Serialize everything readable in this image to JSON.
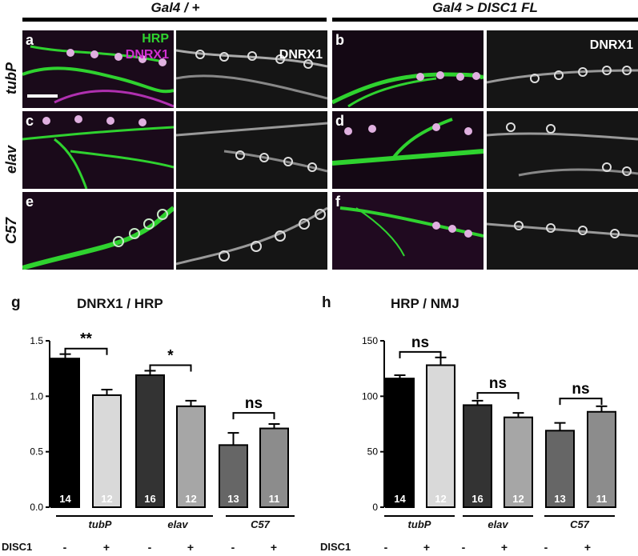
{
  "header": {
    "left_label": "Gal4 / +",
    "right_label": "Gal4 > DISC1 FL"
  },
  "rows": [
    "tubP",
    "elav",
    "C57"
  ],
  "panels": {
    "a": "a",
    "b": "b",
    "c": "c",
    "d": "d",
    "e": "e",
    "f": "f"
  },
  "channels": {
    "hrp": "HRP",
    "dnrx1": "DNRX1",
    "dnrx1_gray": "DNRX1",
    "dnrx1_gray_b": "DNRX1"
  },
  "colors": {
    "hrp": "#2fd22f",
    "dnrx1": "#d02fd0",
    "bar_dark": "#000000",
    "bar_light": "#d9d9d9"
  },
  "chart_data": [
    {
      "type": "bar",
      "letter": "g",
      "title": "DNRX1 / HRP",
      "categories": [
        "tubP -",
        "tubP +",
        "elav -",
        "elav +",
        "C57 -",
        "C57 +"
      ],
      "values": [
        1.34,
        1.01,
        1.19,
        0.91,
        0.56,
        0.71
      ],
      "errors": [
        0.04,
        0.05,
        0.04,
        0.05,
        0.11,
        0.04
      ],
      "n": [
        "14",
        "12",
        "16",
        "12",
        "13",
        "11"
      ],
      "colors": [
        "#000000",
        "#d9d9d9",
        "#333333",
        "#a6a6a6",
        "#666666",
        "#8c8c8c"
      ],
      "ylim": [
        0,
        1.5
      ],
      "yticks": [
        "0.0",
        "0.5",
        "1.0",
        "1.5"
      ],
      "significance": [
        {
          "pair": [
            0,
            1
          ],
          "label": "**",
          "level": 1.43
        },
        {
          "pair": [
            2,
            3
          ],
          "label": "*",
          "level": 1.28
        },
        {
          "pair": [
            4,
            5
          ],
          "label": "ns",
          "level": 0.85
        }
      ],
      "groups": [
        "tubP",
        "elav",
        "C57"
      ],
      "disc_label": "DISC1",
      "disc_signs": [
        "-",
        "+",
        "-",
        "+",
        "-",
        "+"
      ]
    },
    {
      "type": "bar",
      "letter": "h",
      "title": "HRP / NMJ",
      "categories": [
        "tubP -",
        "tubP +",
        "elav -",
        "elav +",
        "C57 -",
        "C57 +"
      ],
      "values": [
        116,
        128,
        92,
        81,
        69,
        86
      ],
      "errors": [
        3,
        7,
        4,
        4,
        7,
        5
      ],
      "n": [
        "14",
        "12",
        "16",
        "12",
        "13",
        "11"
      ],
      "colors": [
        "#000000",
        "#d9d9d9",
        "#333333",
        "#a6a6a6",
        "#666666",
        "#8c8c8c"
      ],
      "ylim": [
        0,
        150
      ],
      "yticks": [
        "0",
        "50",
        "100",
        "150"
      ],
      "significance": [
        {
          "pair": [
            0,
            1
          ],
          "label": "ns",
          "level": 140
        },
        {
          "pair": [
            2,
            3
          ],
          "label": "ns",
          "level": 103
        },
        {
          "pair": [
            4,
            5
          ],
          "label": "ns",
          "level": 98
        }
      ],
      "groups": [
        "tubP",
        "elav",
        "C57"
      ],
      "disc_label": "DISC1",
      "disc_signs": [
        "-",
        "+",
        "-",
        "+",
        "-",
        "+"
      ]
    }
  ]
}
